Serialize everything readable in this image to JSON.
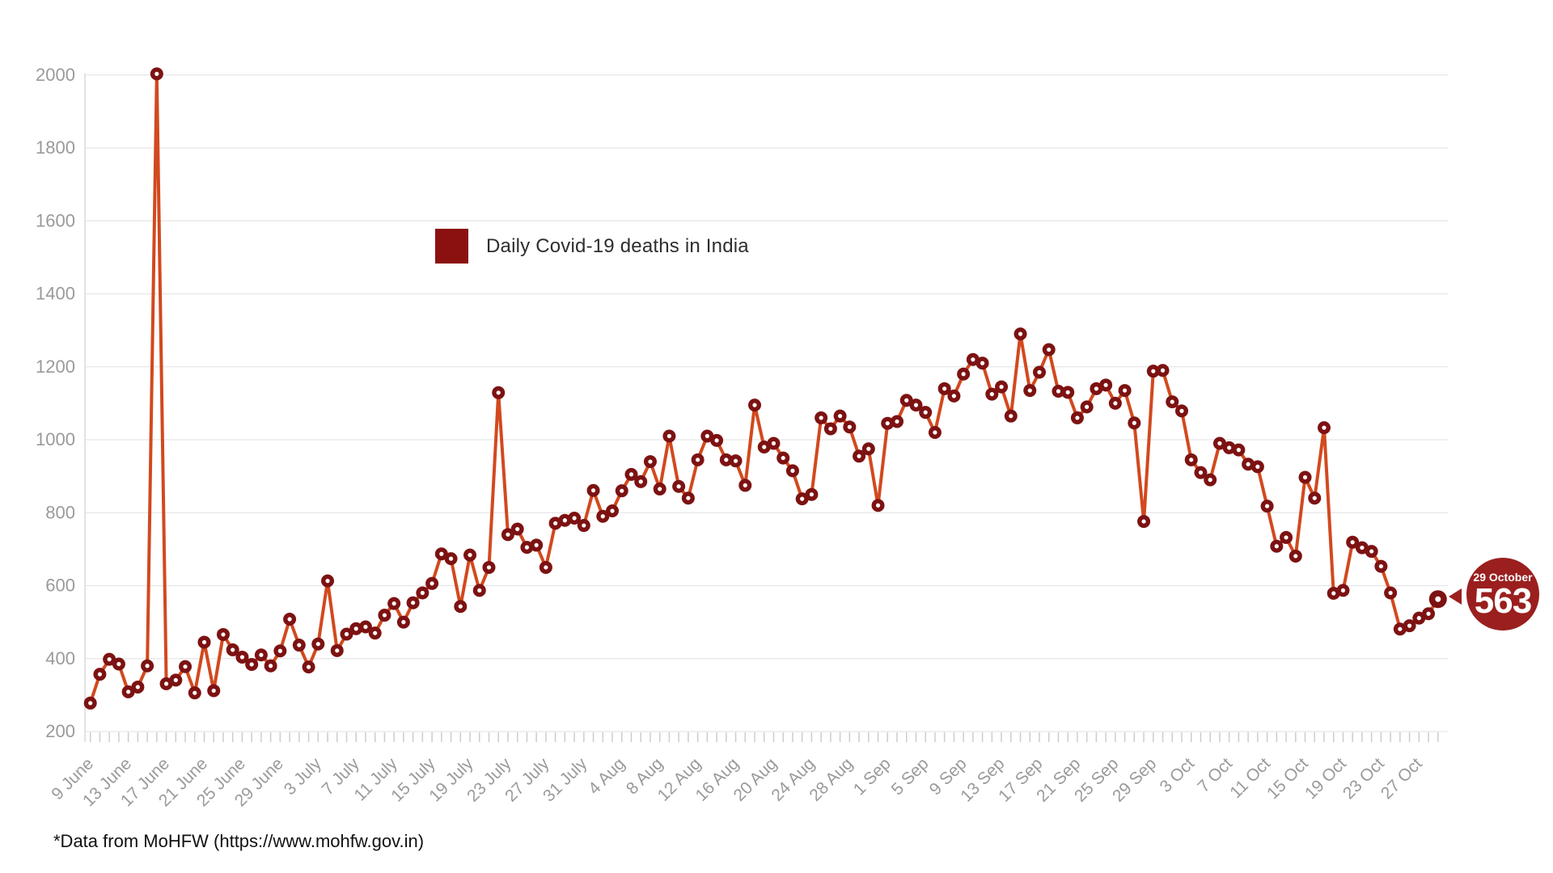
{
  "chart_data": {
    "type": "line",
    "title": "Daily Covid-19 deaths in India",
    "legend_label": "Daily Covid-19 deaths in India",
    "legend_position": "inside-top-left-of-plot",
    "grid": true,
    "x_start_date": "9 June",
    "x_end_date": "29 October",
    "x_tick_label_every_n_days": 4,
    "x_tick_labels": [
      "9 June",
      "13 June",
      "17 June",
      "21 June",
      "25 June",
      "29 June",
      "3 July",
      "7 July",
      "11 July",
      "15 July",
      "19 July",
      "23 July",
      "27 July",
      "31 July",
      "4 Aug",
      "8 Aug",
      "12 Aug",
      "16 Aug",
      "20 Aug",
      "24 Aug",
      "28 Aug",
      "1 Sep",
      "5 Sep",
      "9 Sep",
      "13 Sep",
      "17 Sep",
      "21 Sep",
      "25 Sep",
      "29 Sep",
      "3 Oct",
      "7 Oct",
      "11 Oct",
      "15 Oct",
      "19 Oct",
      "23 Oct",
      "27 Oct"
    ],
    "y_ticks": [
      200,
      400,
      600,
      800,
      1000,
      1200,
      1400,
      1600,
      1800,
      2000
    ],
    "ylim": [
      200,
      2000
    ],
    "values": [
      278,
      357,
      398,
      385,
      309,
      322,
      380,
      2003,
      331,
      341,
      378,
      306,
      445,
      312,
      466,
      424,
      404,
      384,
      410,
      380,
      421,
      508,
      437,
      377,
      440,
      613,
      422,
      467,
      482,
      487,
      470,
      519,
      551,
      500,
      553,
      580,
      606,
      687,
      674,
      543,
      684,
      587,
      650,
      1129,
      740,
      755,
      705,
      711,
      650,
      771,
      779,
      785,
      765,
      861,
      790,
      805,
      860,
      905,
      885,
      940,
      865,
      1010,
      872,
      840,
      945,
      1010,
      998,
      945,
      942,
      875,
      1095,
      980,
      990,
      950,
      915,
      838,
      850,
      1060,
      1030,
      1065,
      1035,
      955,
      975,
      820,
      1045,
      1050,
      1108,
      1095,
      1075,
      1020,
      1140,
      1120,
      1180,
      1220,
      1210,
      1125,
      1145,
      1065,
      1290,
      1135,
      1185,
      1247,
      1133,
      1130,
      1060,
      1090,
      1140,
      1150,
      1100,
      1135,
      1046,
      776,
      1188,
      1190,
      1104,
      1079,
      945,
      910,
      890,
      990,
      978,
      972,
      933,
      926,
      818,
      708,
      732,
      681,
      897,
      840,
      1033,
      579,
      587,
      719,
      704,
      694,
      653,
      580,
      481,
      490,
      511,
      523,
      563
    ],
    "last_point_callout": {
      "date": "29 October",
      "value": "563"
    },
    "colors": {
      "line": "#d2491e",
      "marker_ring": "#7d1212",
      "marker_hole": "#ffffff",
      "legend_swatch": "#8b1111",
      "callout_bubble": "#9b1f1f",
      "gridline": "#e6e6e6",
      "tick": "#cccccc",
      "axis_text": "#9a9a9a"
    }
  },
  "footnote": "*Data from MoHFW (https://www.mohfw.gov.in)",
  "callout": {
    "date": "29 October",
    "value": "563"
  }
}
